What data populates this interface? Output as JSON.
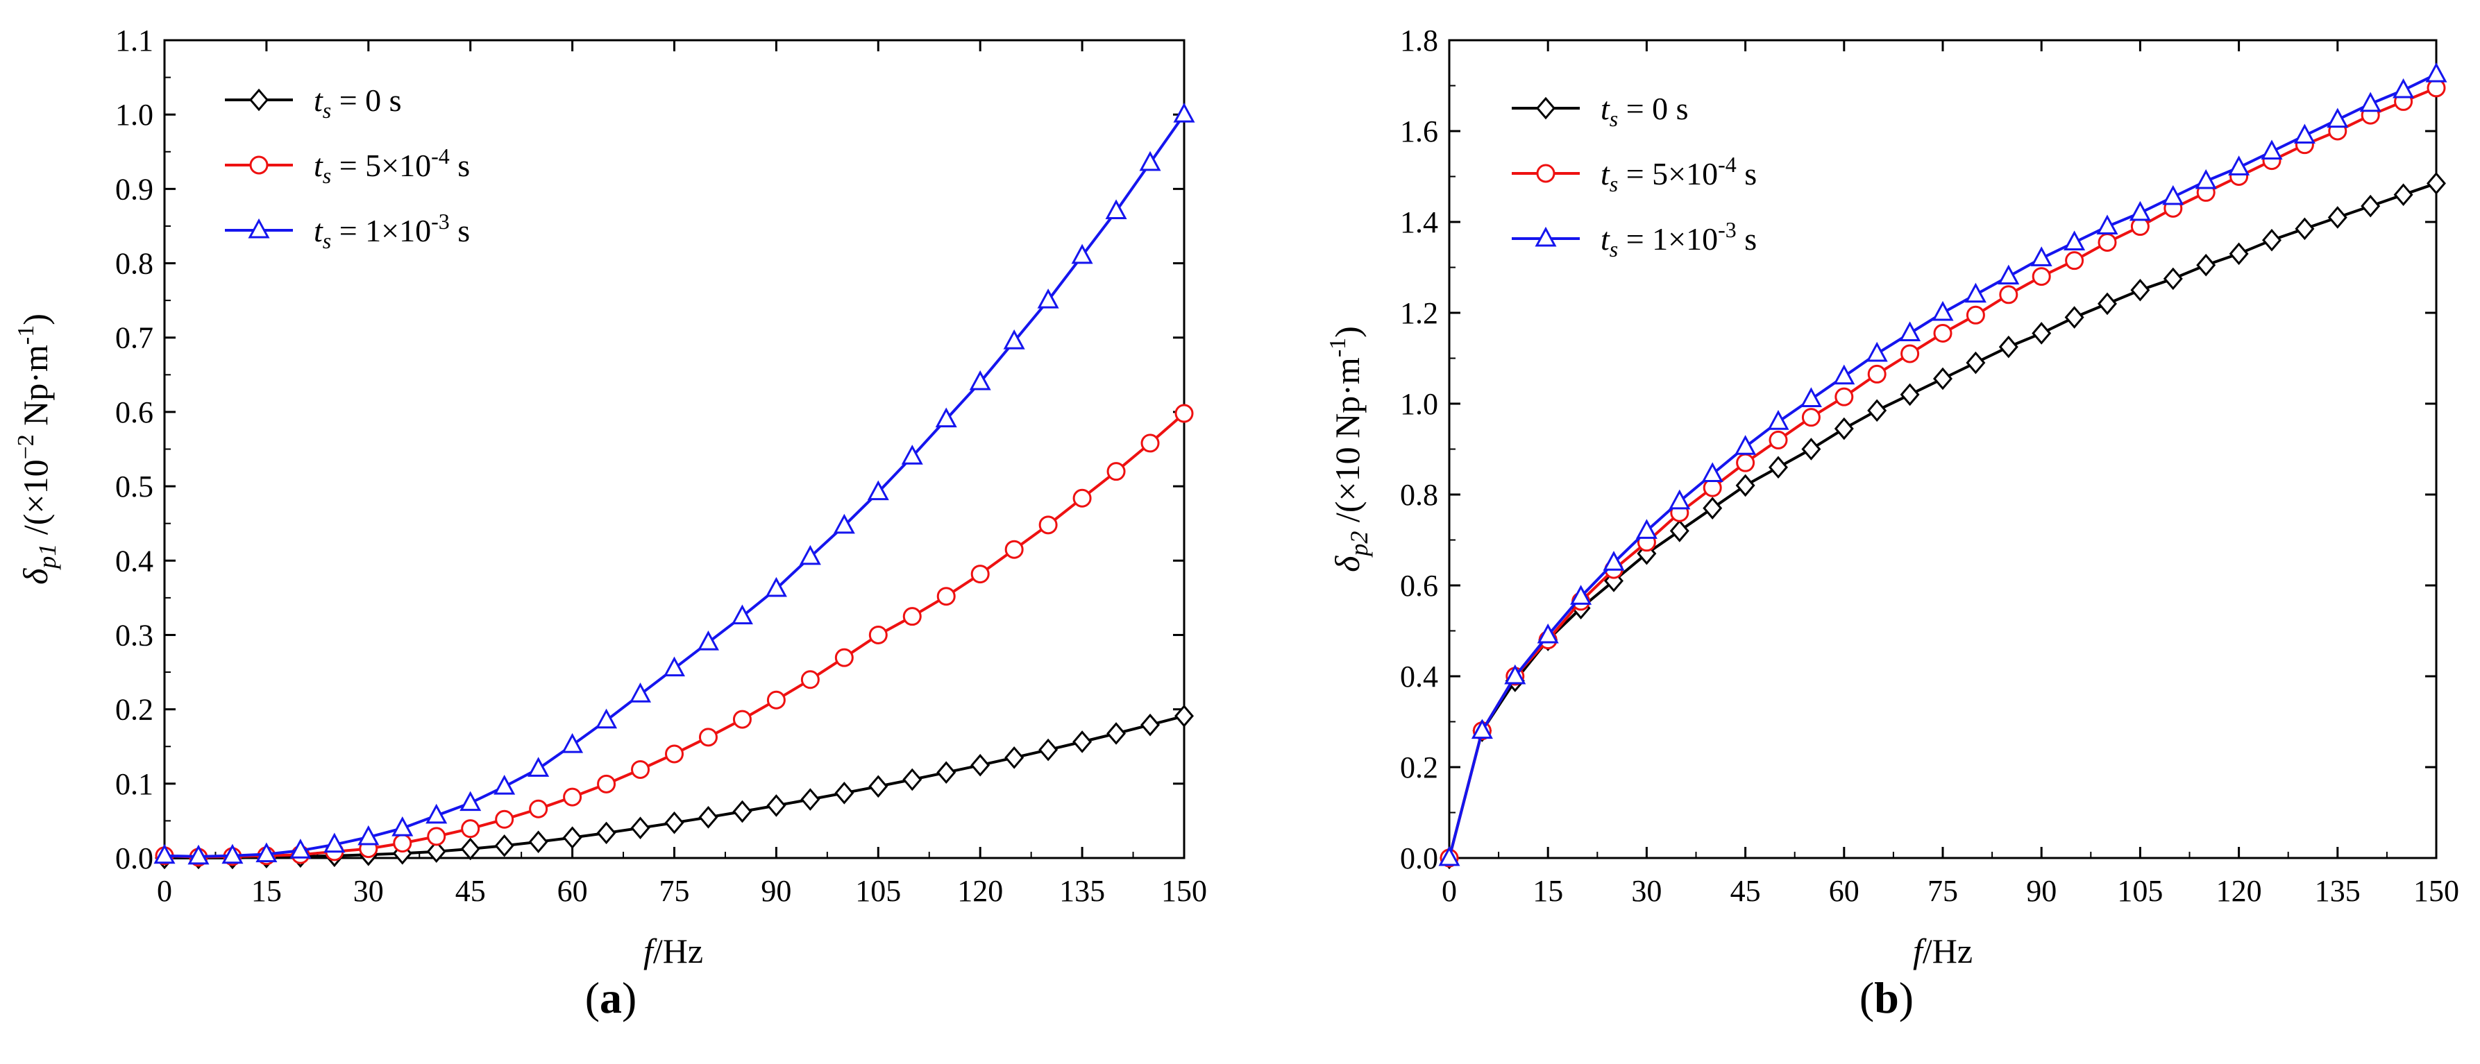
{
  "chart_data": [
    {
      "type": "line",
      "panel_label": "a",
      "xlabel": {
        "sym": "f",
        "unit": "/Hz"
      },
      "ylabel": {
        "sym": "δ",
        "sub": "p1",
        "pre": "/(×10",
        "sup": "−2",
        "mid": " Np·m",
        "sup2": "-1",
        "post": ")"
      },
      "xlim": [
        0,
        150
      ],
      "ylim": [
        0,
        1.1
      ],
      "xticks": [
        "0",
        "15",
        "30",
        "45",
        "60",
        "75",
        "90",
        "105",
        "120",
        "135",
        "150"
      ],
      "yticks": [
        "0.0",
        "0.1",
        "0.2",
        "0.3",
        "0.4",
        "0.5",
        "0.6",
        "0.7",
        "0.8",
        "0.9",
        "1.0",
        "1.1"
      ],
      "legend_position": "top-left",
      "x": [
        0,
        5,
        10,
        15,
        20,
        25,
        30,
        35,
        40,
        45,
        50,
        55,
        60,
        65,
        70,
        75,
        80,
        85,
        90,
        95,
        100,
        105,
        110,
        115,
        120,
        125,
        130,
        135,
        140,
        145,
        150
      ],
      "series": [
        {
          "name": "ts = 0 s",
          "color": "#000000",
          "marker": "diamond",
          "leg": {
            "t": "t",
            "s": "s",
            "eq": " = 0 s",
            "sup": "",
            "tail": ""
          },
          "values": [
            0,
            0,
            0,
            0.0012,
            0.002,
            0.003,
            0.0044,
            0.0062,
            0.0087,
            0.0122,
            0.0165,
            0.0217,
            0.0274,
            0.0337,
            0.0404,
            0.0474,
            0.0548,
            0.0625,
            0.0705,
            0.0788,
            0.0874,
            0.0963,
            0.1055,
            0.115,
            0.1248,
            0.135,
            0.1455,
            0.1563,
            0.1675,
            0.179,
            0.191
          ]
        },
        {
          "name": "ts = 5×10-4 s",
          "color": "#ee1111",
          "marker": "circle",
          "leg": {
            "t": "t",
            "s": "s",
            "eq": " = 5×10",
            "sup": "-4",
            "tail": " s"
          },
          "values": [
            0.003,
            0.001,
            0.002,
            0.003,
            0.0045,
            0.0085,
            0.0125,
            0.02,
            0.029,
            0.0395,
            0.052,
            0.066,
            0.082,
            0.0995,
            0.119,
            0.14,
            0.1625,
            0.1865,
            0.2125,
            0.24,
            0.2695,
            0.3,
            0.325,
            0.352,
            0.382,
            0.415,
            0.448,
            0.484,
            0.52,
            0.558,
            0.598
          ]
        },
        {
          "name": "ts = 1×10-3 s",
          "color": "#1515ee",
          "marker": "triangle",
          "leg": {
            "t": "t",
            "s": "s",
            "eq": " = 1×10",
            "sup": "-3",
            "tail": " s"
          },
          "values": [
            0.003,
            0.002,
            0.003,
            0.005,
            0.01,
            0.018,
            0.028,
            0.04,
            0.057,
            0.074,
            0.096,
            0.12,
            0.152,
            0.185,
            0.22,
            0.255,
            0.29,
            0.325,
            0.362,
            0.405,
            0.447,
            0.492,
            0.54,
            0.59,
            0.64,
            0.695,
            0.75,
            0.81,
            0.87,
            0.935,
            1.0
          ]
        }
      ]
    },
    {
      "type": "line",
      "panel_label": "b",
      "xlabel": {
        "sym": "f",
        "unit": "/Hz"
      },
      "ylabel": {
        "sym": "δ",
        "sub": "p2",
        "pre": "/(×10 Np·m",
        "sup": "-1",
        "mid": "",
        "sup2": "",
        "post": ")"
      },
      "xlim": [
        0,
        150
      ],
      "ylim": [
        0,
        1.8
      ],
      "xticks": [
        "0",
        "15",
        "30",
        "45",
        "60",
        "75",
        "90",
        "105",
        "120",
        "135",
        "150"
      ],
      "yticks": [
        "0.0",
        "0.2",
        "0.4",
        "0.6",
        "0.8",
        "1.0",
        "1.2",
        "1.4",
        "1.6",
        "1.8"
      ],
      "legend_position": "top-left",
      "x": [
        0,
        5,
        10,
        15,
        20,
        25,
        30,
        35,
        40,
        45,
        50,
        55,
        60,
        65,
        70,
        75,
        80,
        85,
        90,
        95,
        100,
        105,
        110,
        115,
        120,
        125,
        130,
        135,
        140,
        145,
        150
      ],
      "series": [
        {
          "name": "ts = 0 s",
          "color": "#000000",
          "marker": "diamond",
          "leg": {
            "t": "t",
            "s": "s",
            "eq": " = 0 s",
            "sup": "",
            "tail": ""
          },
          "values": [
            0,
            0.28,
            0.39,
            0.48,
            0.55,
            0.61,
            0.67,
            0.72,
            0.77,
            0.82,
            0.86,
            0.9,
            0.945,
            0.985,
            1.02,
            1.055,
            1.09,
            1.125,
            1.155,
            1.19,
            1.22,
            1.25,
            1.275,
            1.305,
            1.33,
            1.36,
            1.385,
            1.41,
            1.435,
            1.46,
            1.485
          ]
        },
        {
          "name": "ts = 5×10-4 s",
          "color": "#ee1111",
          "marker": "circle",
          "leg": {
            "t": "t",
            "s": "s",
            "eq": " = 5×10",
            "sup": "-4",
            "tail": " s"
          },
          "values": [
            0,
            0.28,
            0.4,
            0.48,
            0.565,
            0.635,
            0.695,
            0.76,
            0.815,
            0.87,
            0.92,
            0.97,
            1.015,
            1.065,
            1.11,
            1.155,
            1.195,
            1.24,
            1.28,
            1.315,
            1.355,
            1.39,
            1.43,
            1.465,
            1.5,
            1.535,
            1.57,
            1.6,
            1.635,
            1.665,
            1.695
          ]
        },
        {
          "name": "ts = 1×10-3 s",
          "color": "#1515ee",
          "marker": "triangle",
          "leg": {
            "t": "t",
            "s": "s",
            "eq": " = 1×10",
            "sup": "-3",
            "tail": " s"
          },
          "values": [
            0,
            0.28,
            0.4,
            0.49,
            0.575,
            0.65,
            0.72,
            0.785,
            0.845,
            0.905,
            0.96,
            1.01,
            1.06,
            1.11,
            1.155,
            1.2,
            1.24,
            1.28,
            1.32,
            1.355,
            1.39,
            1.42,
            1.455,
            1.49,
            1.52,
            1.555,
            1.59,
            1.625,
            1.66,
            1.69,
            1.725
          ]
        }
      ]
    }
  ]
}
